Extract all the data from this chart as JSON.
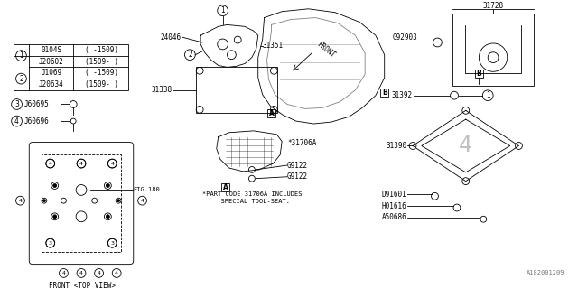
{
  "bg_color": "#ffffff",
  "line_color": "#000000",
  "labels": {
    "fig180": "FIG.180",
    "front_top": "FRONT <TOP VIEW>",
    "part24046": "24046",
    "part31351": "31351",
    "part31338": "31338",
    "part31706A": "*31706A",
    "partG9122a": "G9122",
    "partG9122b": "G9122",
    "note_line1": "*PART CODE 31706A INCLUDES",
    "note_line2": "  SPECIAL TOOL-SEAT.",
    "part31728": "31728",
    "partG92903": "G92903",
    "part31392": "31392",
    "part31390": "31390",
    "partD91601": "D91601",
    "partH01616": "H01616",
    "partA50686": "A50686",
    "watermark": "A182001209",
    "front_arrow": "FRONT",
    "label3": "J60695",
    "label4": "J60696"
  }
}
